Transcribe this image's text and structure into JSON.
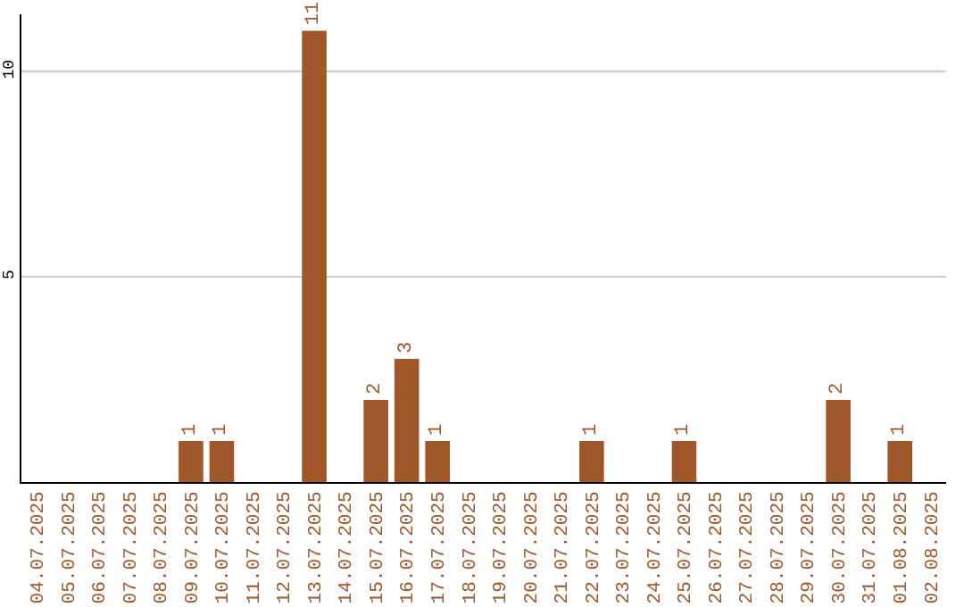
{
  "chart_data": {
    "type": "bar",
    "categories": [
      "04.07.2025",
      "05.07.2025",
      "06.07.2025",
      "07.07.2025",
      "08.07.2025",
      "09.07.2025",
      "10.07.2025",
      "11.07.2025",
      "12.07.2025",
      "13.07.2025",
      "14.07.2025",
      "15.07.2025",
      "16.07.2025",
      "17.07.2025",
      "18.07.2025",
      "19.07.2025",
      "20.07.2025",
      "21.07.2025",
      "22.07.2025",
      "23.07.2025",
      "24.07.2025",
      "25.07.2025",
      "26.07.2025",
      "27.07.2025",
      "28.07.2025",
      "29.07.2025",
      "30.07.2025",
      "31.07.2025",
      "01.08.2025",
      "02.08.2025"
    ],
    "values": [
      0,
      0,
      0,
      0,
      0,
      1,
      1,
      0,
      0,
      11,
      0,
      2,
      3,
      1,
      0,
      0,
      0,
      0,
      1,
      0,
      0,
      1,
      0,
      0,
      0,
      0,
      2,
      0,
      1,
      0
    ],
    "value_labels": [
      null,
      null,
      null,
      null,
      null,
      "1",
      "1",
      null,
      null,
      "11",
      null,
      "2",
      "3",
      "1",
      null,
      null,
      null,
      null,
      "1",
      null,
      null,
      "1",
      null,
      null,
      null,
      null,
      "2",
      null,
      "1",
      null
    ],
    "color": "#a0572a",
    "ylim": [
      0,
      11.4
    ],
    "yticks": [
      5,
      10
    ],
    "grid": "y"
  }
}
